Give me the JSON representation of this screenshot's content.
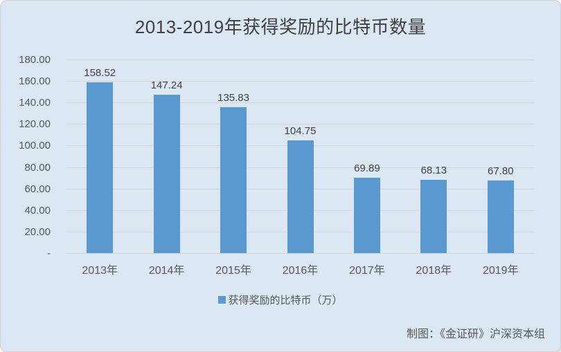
{
  "title": "2013-2019年获得奖励的比特币数量",
  "legend": {
    "label": "获得奖励的比特币（万）"
  },
  "credit": "制图：《金证研》沪深资本组",
  "colors": {
    "background": "#dbe7f3",
    "bar": "#5899d2",
    "gridline": "#d4d6d4",
    "title_text": "#404040",
    "axis_text": "#595959"
  },
  "chart_data": {
    "type": "bar",
    "title": "2013-2019年获得奖励的比特币数量",
    "categories": [
      "2013年",
      "2014年",
      "2015年",
      "2016年",
      "2017年",
      "2018年",
      "2019年"
    ],
    "values": [
      158.52,
      147.24,
      135.83,
      104.75,
      69.89,
      68.13,
      67.8
    ],
    "data_labels": [
      "158.52",
      "147.24",
      "135.83",
      "104.75",
      "69.89",
      "68.13",
      "67.80"
    ],
    "series_name": "获得奖励的比特币（万）",
    "xlabel": "",
    "ylabel": "",
    "ylim": [
      0,
      180
    ],
    "ytick_step": 20,
    "ytick_labels": [
      "180.00",
      "160.00",
      "140.00",
      "120.00",
      "100.00",
      "80.00",
      "60.00",
      "40.00",
      "20.00",
      "-"
    ],
    "grid": true,
    "legend_position": "bottom"
  }
}
